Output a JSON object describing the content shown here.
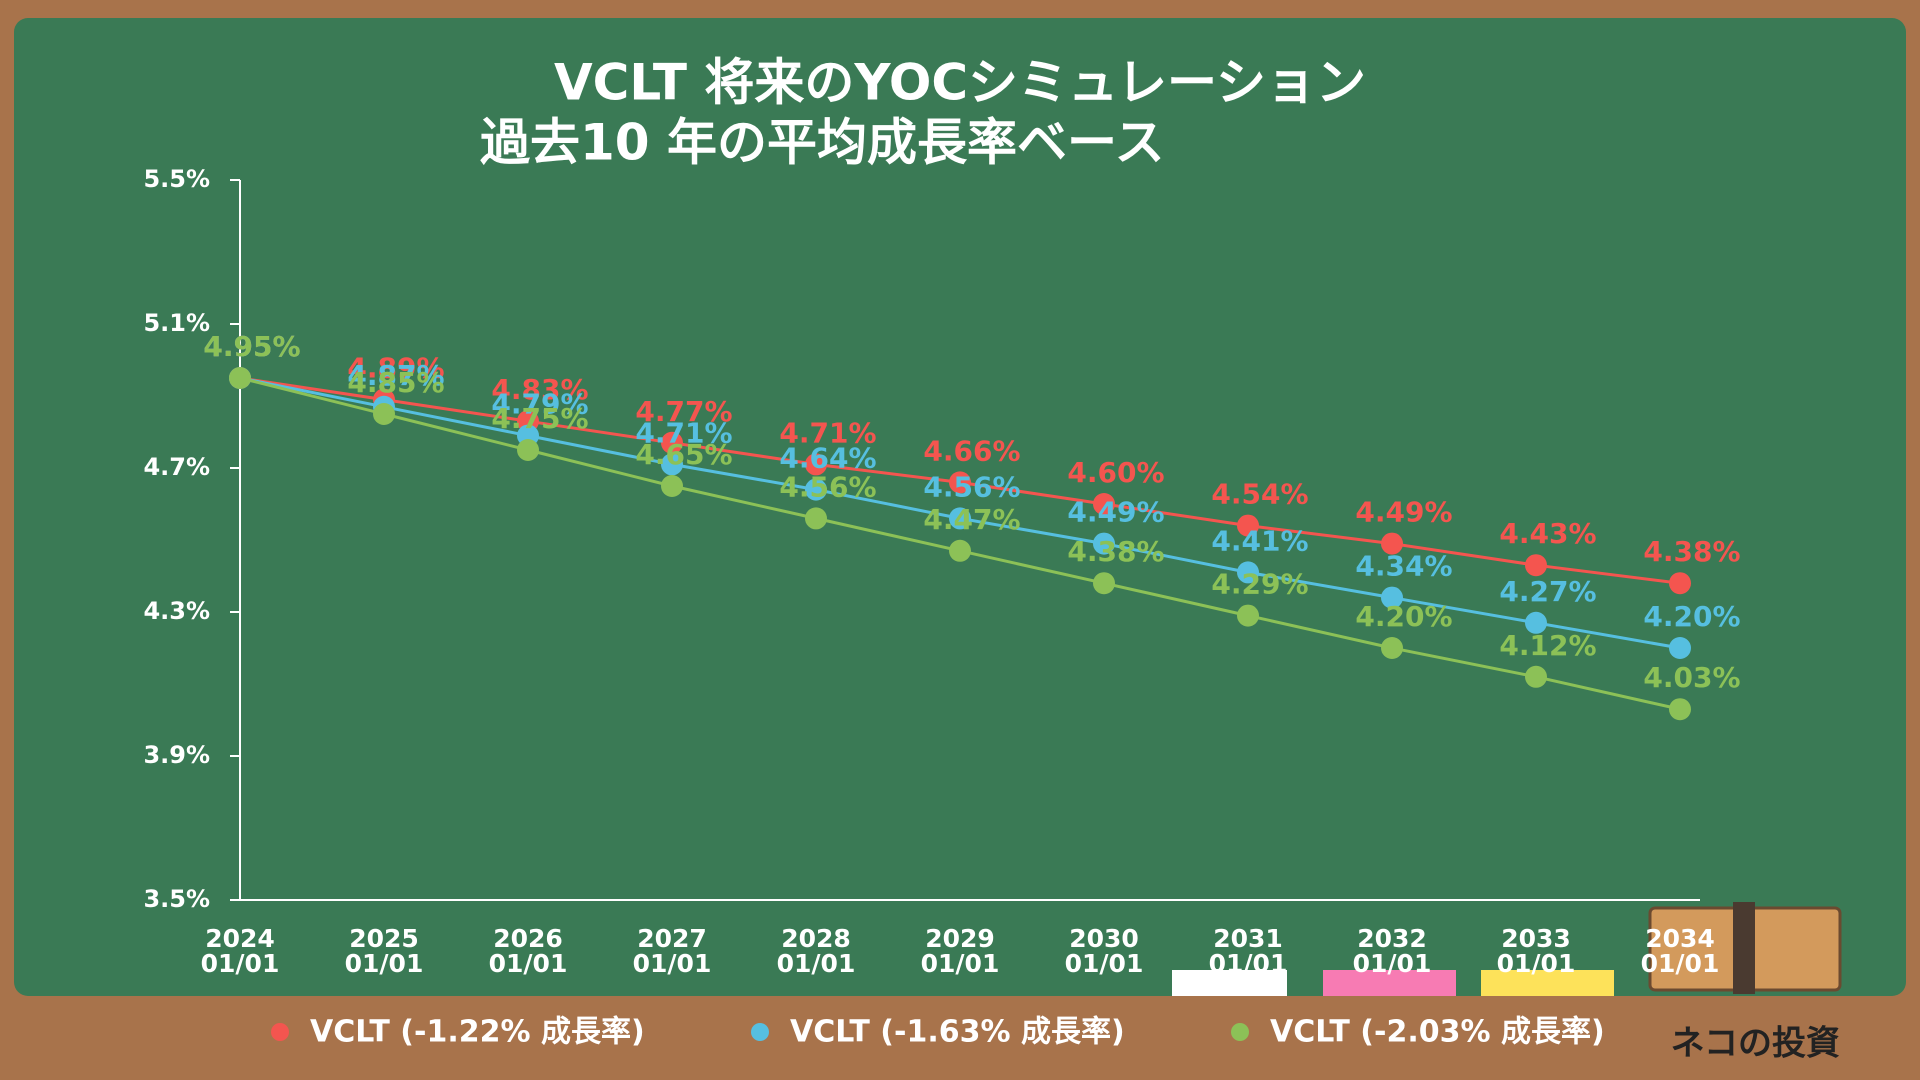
{
  "chart_data": {
    "type": "line",
    "title": "VCLT 将来のYOCシミュレーション",
    "subtitle": "過去10 年の平均成長率ベース",
    "categories": [
      "2024\n01/01",
      "2025\n01/01",
      "2026\n01/01",
      "2027\n01/01",
      "2028\n01/01",
      "2029\n01/01",
      "2030\n01/01",
      "2031\n01/01",
      "2032\n01/01",
      "2033\n01/01",
      "2034\n01/01"
    ],
    "series": [
      {
        "name": "VCLT (-1.22% 成長率)",
        "color": "#f4554f",
        "values": [
          4.95,
          4.89,
          4.83,
          4.77,
          4.71,
          4.66,
          4.6,
          4.54,
          4.49,
          4.43,
          4.38
        ],
        "value_labels": [
          "4.95%",
          "4.89%",
          "4.83%",
          "4.77%",
          "4.71%",
          "4.66%",
          "4.60%",
          "4.54%",
          "4.49%",
          "4.43%",
          "4.38%"
        ]
      },
      {
        "name": "VCLT (-1.63% 成長率)",
        "color": "#56bfe0",
        "values": [
          4.95,
          4.87,
          4.79,
          4.71,
          4.64,
          4.56,
          4.49,
          4.41,
          4.34,
          4.27,
          4.2
        ],
        "value_labels": [
          "4.95%",
          "4.87%",
          "4.79%",
          "4.71%",
          "4.64%",
          "4.56%",
          "4.49%",
          "4.41%",
          "4.34%",
          "4.27%",
          "4.20%"
        ]
      },
      {
        "name": "VCLT (-2.03% 成長率)",
        "color": "#8cc157",
        "values": [
          4.95,
          4.85,
          4.75,
          4.65,
          4.56,
          4.47,
          4.38,
          4.29,
          4.2,
          4.12,
          4.03
        ],
        "value_labels": [
          "4.95%",
          "4.85%",
          "4.75%",
          "4.65%",
          "4.56%",
          "4.47%",
          "4.38%",
          "4.29%",
          "4.20%",
          "4.12%",
          "4.03%"
        ]
      }
    ],
    "ylim": [
      3.5,
      5.5
    ],
    "yticks": [
      {
        "value": 3.5,
        "label": "3.5%"
      },
      {
        "value": 3.9,
        "label": "3.9%"
      },
      {
        "value": 4.3,
        "label": "4.3%"
      },
      {
        "value": 4.7,
        "label": "4.7%"
      },
      {
        "value": 5.1,
        "label": "5.1%"
      },
      {
        "value": 5.5,
        "label": "5.5%"
      }
    ],
    "legend": "bottom",
    "brand": "ネコの投資"
  }
}
